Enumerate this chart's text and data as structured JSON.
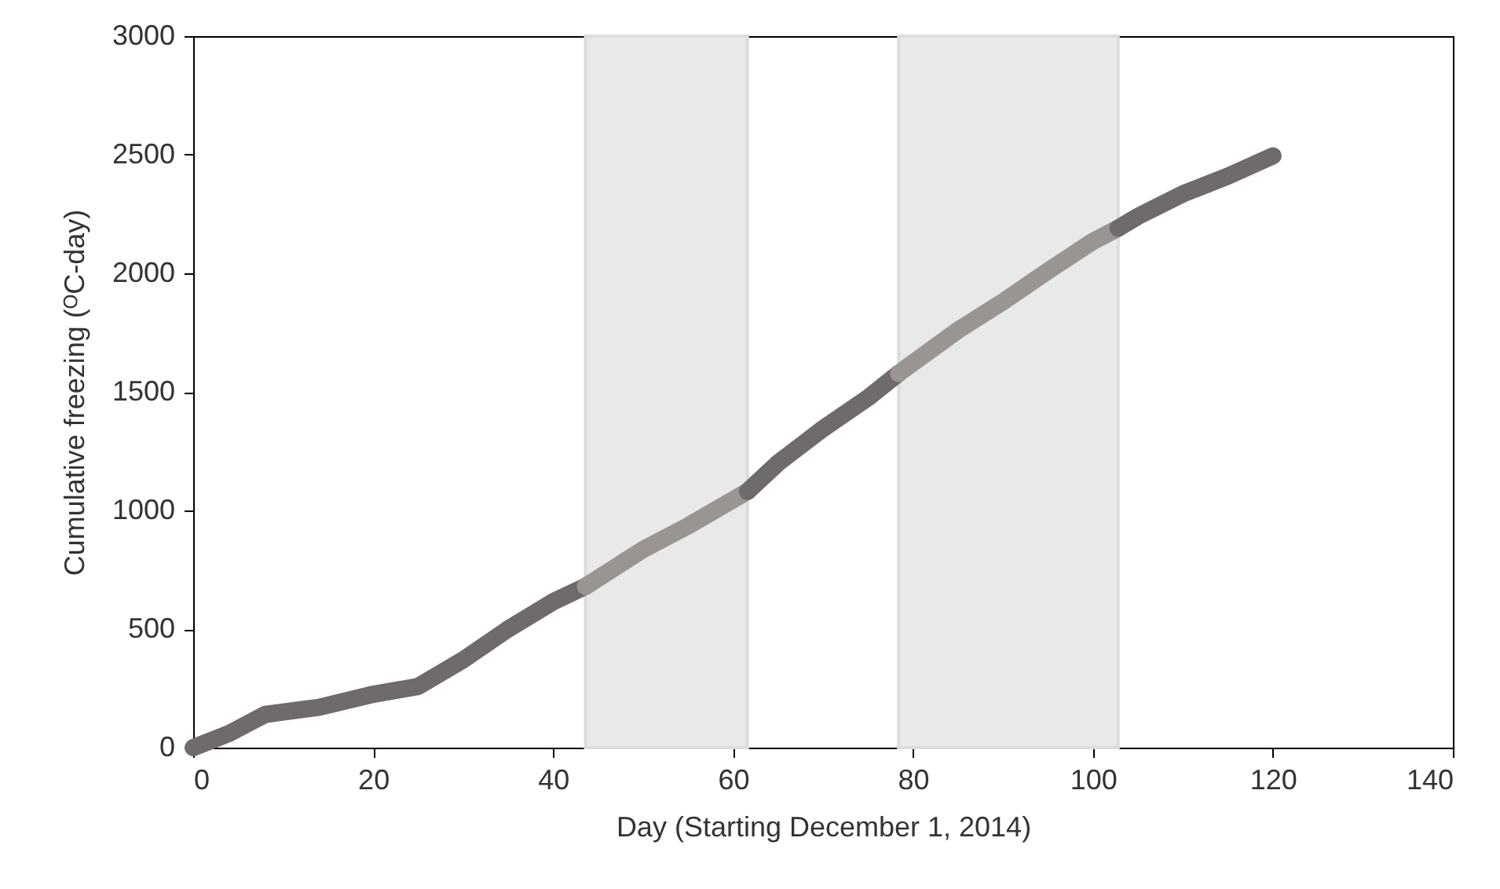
{
  "chart_data": {
    "type": "line",
    "xlabel": "Day (Starting December 1, 2014)",
    "ylabel": "Cumulative freezing (ᴼC-day)",
    "xlim": [
      0,
      140
    ],
    "xticks": [
      0,
      20,
      40,
      60,
      80,
      100,
      120,
      140
    ],
    "ylim": [
      0,
      3000
    ],
    "yticks": [
      0,
      500,
      1000,
      1500,
      2000,
      2500,
      3000
    ],
    "grid": false,
    "line_style": "solid",
    "bands": [
      {
        "axis": "x",
        "from": 43.6,
        "to": 61.6,
        "color": "#e9e9e9"
      },
      {
        "axis": "x",
        "from": 78.4,
        "to": 102.8,
        "color": "#e9e9e9"
      }
    ],
    "series": [
      {
        "color": "#6f6b6a",
        "x": [
          0,
          4,
          8,
          10,
          14,
          20,
          25,
          30,
          35,
          40,
          43.6
        ],
        "values": [
          0,
          60,
          140,
          150,
          170,
          225,
          258,
          370,
          500,
          615,
          680
        ]
      },
      {
        "color": "#9a9593",
        "x": [
          43.6,
          50,
          55,
          61.6
        ],
        "values": [
          680,
          835,
          935,
          1080
        ]
      },
      {
        "color": "#6f6b6a",
        "x": [
          61.6,
          65,
          70,
          75,
          78.4
        ],
        "values": [
          1080,
          1200,
          1345,
          1475,
          1578
        ]
      },
      {
        "color": "#9a9593",
        "x": [
          78.4,
          85,
          90,
          95,
          100,
          102.8
        ],
        "values": [
          1578,
          1760,
          1880,
          2010,
          2135,
          2190
        ]
      },
      {
        "color": "#6f6b6a",
        "x": [
          102.8,
          105,
          110,
          115,
          120
        ],
        "values": [
          2190,
          2240,
          2335,
          2410,
          2495
        ]
      }
    ]
  }
}
